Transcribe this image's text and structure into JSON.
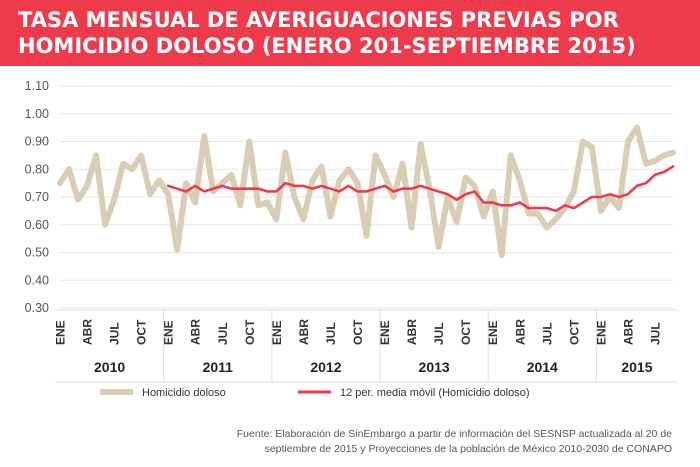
{
  "title_lines": [
    "TASA MENSUAL DE AVERIGUACIONES PREVIAS POR",
    "HOMICIDIO DOLOSO (ENERO 201-SEPTIEMBRE 2015)"
  ],
  "source_lines": [
    "Fuente: Elaboración de SinEmbargo a partir de información del SESNSP actualizada al 20 de",
    "septiembre de 2015 y Proyecciones de la población de México 2010-2030 de CONAPO"
  ],
  "colors": {
    "header": "#ee3b4c",
    "homicidio": "#d9cdb3",
    "media": "#ee3b4c"
  },
  "chart_data": {
    "type": "line",
    "title": "TASA MENSUAL DE AVERIGUACIONES PREVIAS POR HOMICIDIO DOLOSO (ENERO 201-SEPTIEMBRE 2015)",
    "ylim": [
      0.3,
      1.1
    ],
    "yticks": [
      "0.30",
      "0.40",
      "0.50",
      "0.60",
      "0.70",
      "0.80",
      "0.90",
      "1.00",
      "1.10"
    ],
    "grid": true,
    "legend_position": "bottom",
    "month_ticks": [
      "ENE",
      "ABR",
      "JUL",
      "OCT"
    ],
    "years": [
      "2010",
      "2011",
      "2012",
      "2013",
      "2014",
      "2015"
    ],
    "x_start": "2010-01",
    "series": [
      {
        "name": "Homicidio doloso",
        "color": "#d9cdb3",
        "values": [
          0.75,
          0.8,
          0.69,
          0.74,
          0.85,
          0.6,
          0.69,
          0.82,
          0.8,
          0.85,
          0.71,
          0.76,
          0.71,
          0.51,
          0.75,
          0.68,
          0.92,
          0.72,
          0.75,
          0.78,
          0.67,
          0.9,
          0.67,
          0.68,
          0.62,
          0.86,
          0.7,
          0.62,
          0.76,
          0.81,
          0.63,
          0.76,
          0.8,
          0.75,
          0.56,
          0.85,
          0.78,
          0.7,
          0.82,
          0.59,
          0.89,
          0.73,
          0.52,
          0.7,
          0.61,
          0.77,
          0.74,
          0.63,
          0.72,
          0.49,
          0.85,
          0.76,
          0.64,
          0.64,
          0.59,
          0.62,
          0.66,
          0.72,
          0.9,
          0.88,
          0.65,
          0.7,
          0.66,
          0.9,
          0.95,
          0.82,
          0.83,
          0.85,
          0.86
        ]
      },
      {
        "name": "12 per. media móvil (Homicidio doloso)",
        "color": "#ee3b4c",
        "values": [
          null,
          null,
          null,
          null,
          null,
          null,
          null,
          null,
          null,
          null,
          null,
          null,
          0.74,
          0.73,
          0.72,
          0.74,
          0.72,
          0.73,
          0.74,
          0.73,
          0.73,
          0.73,
          0.73,
          0.72,
          0.72,
          0.75,
          0.74,
          0.74,
          0.73,
          0.74,
          0.73,
          0.72,
          0.74,
          0.72,
          0.72,
          0.73,
          0.74,
          0.72,
          0.73,
          0.73,
          0.74,
          0.73,
          0.72,
          0.71,
          0.69,
          0.71,
          0.72,
          0.68,
          0.68,
          0.67,
          0.67,
          0.68,
          0.66,
          0.66,
          0.66,
          0.65,
          0.67,
          0.66,
          0.68,
          0.7,
          0.7,
          0.71,
          0.7,
          0.71,
          0.74,
          0.75,
          0.78,
          0.79,
          0.81
        ]
      }
    ]
  }
}
